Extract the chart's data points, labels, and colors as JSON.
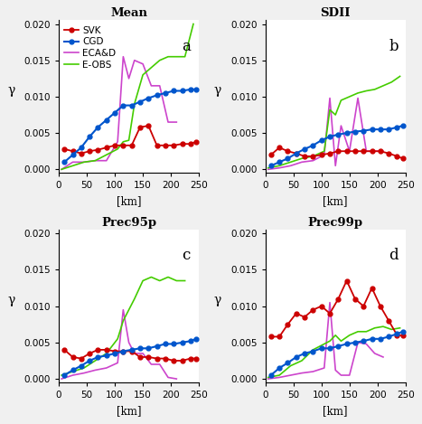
{
  "titles": [
    "Mean",
    "SDII",
    "Prec95p",
    "Prec99p"
  ],
  "panel_labels": [
    "a",
    "b",
    "c",
    "d"
  ],
  "xlabel": "[km]",
  "ylabel": "γ",
  "ylim": [
    -0.0005,
    0.0205
  ],
  "yticks": [
    0.0,
    0.005,
    0.01,
    0.015,
    0.02
  ],
  "xlim": [
    0,
    250
  ],
  "xticks": [
    0,
    50,
    100,
    150,
    200,
    250
  ],
  "colors": {
    "SVK": "#cc0000",
    "CGD": "#0055cc",
    "ECA&D": "#cc44cc",
    "E-OBS": "#44cc00"
  },
  "legend_labels": [
    "SVK",
    "CGD",
    "ECA&D",
    "E-OBS"
  ],
  "x_SVK": [
    10,
    25,
    40,
    55,
    70,
    85,
    100,
    115,
    130,
    145,
    160,
    175,
    190,
    205,
    220,
    235,
    245
  ],
  "x_CGD": [
    10,
    25,
    40,
    55,
    70,
    85,
    100,
    115,
    130,
    145,
    160,
    175,
    190,
    205,
    220,
    235,
    245
  ],
  "x_ECA": [
    5,
    25,
    45,
    65,
    85,
    105,
    115,
    125,
    135,
    150,
    165,
    180,
    195,
    210,
    225
  ],
  "x_EOBS": [
    5,
    25,
    45,
    65,
    85,
    105,
    115,
    125,
    135,
    150,
    165,
    180,
    195,
    210,
    225,
    240
  ],
  "data": {
    "Mean": {
      "SVK": [
        0.0028,
        0.0025,
        0.0022,
        0.0025,
        0.0027,
        0.003,
        0.0033,
        0.0033,
        0.0033,
        0.0058,
        0.006,
        0.0033,
        0.0033,
        0.0033,
        0.0035,
        0.0035,
        0.0038
      ],
      "CGD": [
        0.001,
        0.002,
        0.003,
        0.0045,
        0.0058,
        0.0068,
        0.0078,
        0.0088,
        0.0088,
        0.0093,
        0.0098,
        0.0102,
        0.0105,
        0.0108,
        0.0108,
        0.011,
        0.011
      ],
      "ECA&D": [
        0.0,
        0.001,
        0.001,
        0.0012,
        0.0012,
        0.0038,
        0.0155,
        0.0125,
        0.015,
        0.0145,
        0.0115,
        0.0115,
        0.0065,
        0.0065,
        null
      ],
      "E-OBS": [
        0.0,
        0.0005,
        0.001,
        0.0012,
        0.002,
        0.0028,
        0.0038,
        0.004,
        0.009,
        0.013,
        0.014,
        0.015,
        0.0155,
        0.0155,
        0.0155,
        0.02
      ]
    },
    "SDII": {
      "SVK": [
        0.002,
        0.003,
        0.0025,
        0.0022,
        0.0018,
        0.0018,
        0.002,
        0.0022,
        0.0025,
        0.0025,
        0.0025,
        0.0025,
        0.0025,
        0.0025,
        0.0022,
        0.0018,
        0.0015
      ],
      "CGD": [
        0.0005,
        0.001,
        0.0015,
        0.0022,
        0.0028,
        0.0033,
        0.004,
        0.0045,
        0.0048,
        0.005,
        0.0052,
        0.0053,
        0.0055,
        0.0055,
        0.0055,
        0.0058,
        0.006
      ],
      "ECA&D": [
        0.0,
        0.0002,
        0.0005,
        0.001,
        0.0012,
        0.002,
        0.0098,
        0.0005,
        0.006,
        0.0025,
        0.0098,
        0.0025,
        0.0025,
        0.0025,
        null
      ],
      "E-OBS": [
        0.0002,
        0.0005,
        0.001,
        0.0015,
        0.0018,
        0.0025,
        0.0082,
        0.0075,
        0.0095,
        0.01,
        0.0105,
        0.0108,
        0.011,
        0.0115,
        0.012,
        0.0128
      ]
    },
    "Prec95p": {
      "SVK": [
        0.004,
        0.003,
        0.0028,
        0.0035,
        0.004,
        0.004,
        0.0038,
        0.0038,
        0.0038,
        0.003,
        0.003,
        0.0028,
        0.0028,
        0.0025,
        0.0025,
        0.0028,
        0.0028
      ],
      "CGD": [
        0.0005,
        0.0012,
        0.0018,
        0.0025,
        0.003,
        0.0032,
        0.0035,
        0.0038,
        0.004,
        0.0042,
        0.0042,
        0.0045,
        0.0048,
        0.0048,
        0.005,
        0.0052,
        0.0055
      ],
      "ECA&D": [
        0.0,
        0.0005,
        0.0008,
        0.0012,
        0.0015,
        0.0022,
        0.0095,
        0.005,
        0.0035,
        0.0035,
        0.002,
        0.002,
        0.0002,
        0.0,
        null
      ],
      "E-OBS": [
        0.0005,
        0.001,
        0.0015,
        0.0025,
        0.0035,
        0.0055,
        0.008,
        0.0095,
        0.011,
        0.0135,
        0.014,
        0.0135,
        0.014,
        0.0135,
        0.0135,
        null
      ]
    },
    "Prec99p": {
      "SVK": [
        0.0058,
        0.0058,
        0.0075,
        0.009,
        0.0085,
        0.0095,
        0.01,
        0.009,
        0.011,
        0.0135,
        0.011,
        0.01,
        0.0125,
        0.01,
        0.008,
        0.006,
        0.006
      ],
      "CGD": [
        0.0005,
        0.0015,
        0.0022,
        0.003,
        0.0035,
        0.0038,
        0.0042,
        0.0042,
        0.0045,
        0.0048,
        0.005,
        0.0052,
        0.0055,
        0.0055,
        0.0058,
        0.0062,
        0.0065
      ],
      "ECA&D": [
        0.0,
        0.0002,
        0.0005,
        0.0008,
        0.001,
        0.0015,
        0.0105,
        0.0012,
        0.0005,
        0.0005,
        0.005,
        0.0048,
        0.0035,
        0.003,
        null
      ],
      "E-OBS": [
        0.0002,
        0.0005,
        0.0018,
        0.0025,
        0.004,
        0.0048,
        0.0052,
        0.006,
        0.0052,
        0.006,
        0.0065,
        0.0065,
        0.007,
        0.0072,
        0.0068,
        0.007
      ]
    }
  },
  "bg_color": "#f0f0f0",
  "plot_bg": "#ffffff"
}
